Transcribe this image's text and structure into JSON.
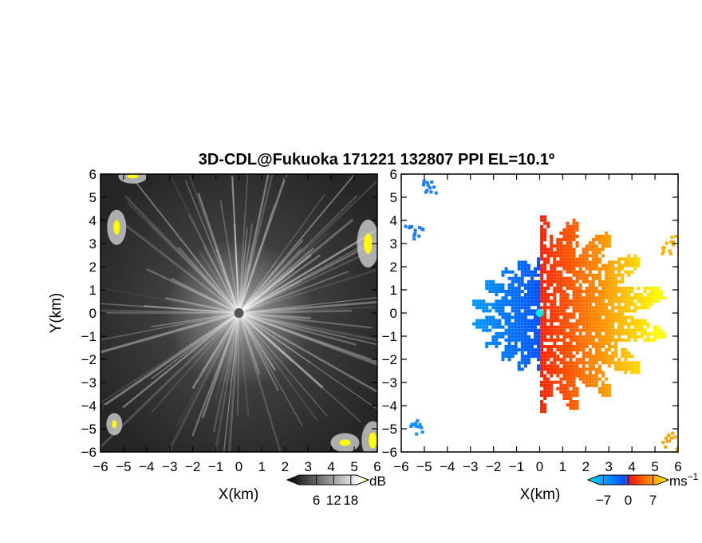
{
  "title": "3D-CDL@Fukuoka 171221 132807 PPI EL=10.1º",
  "chart_data": [
    {
      "type": "heatmap",
      "field": "intensity",
      "xlabel": "X(km)",
      "ylabel": "Y(km)",
      "xlim": [
        -6,
        6
      ],
      "ylim": [
        -6,
        6
      ],
      "ticks": [
        -6,
        -5,
        -4,
        -3,
        -2,
        -1,
        0,
        1,
        2,
        3,
        4,
        5,
        6
      ],
      "colorbar": {
        "unit": "dB",
        "ticks": [
          6,
          12,
          18
        ],
        "colors": [
          "#000000",
          "#ffffff",
          "#ffff00"
        ]
      },
      "highlights": [
        "top-left corner",
        "left edge near y=3.5",
        "right edge near y=3",
        "bottom-left corner",
        "bottom-right corner"
      ],
      "center_marker": {
        "x": 0,
        "y": 0
      }
    },
    {
      "type": "heatmap",
      "field": "radial velocity",
      "xlabel": "X(km)",
      "ylabel": "",
      "xlim": [
        -6,
        6
      ],
      "ylim": [
        -6,
        6
      ],
      "ticks": [
        -6,
        -5,
        -4,
        -3,
        -2,
        -1,
        0,
        1,
        2,
        3,
        4,
        5,
        6
      ],
      "colorbar": {
        "unit": "ms",
        "unit_exponent": "−1",
        "ticks": [
          -7,
          0,
          7
        ],
        "colors": [
          "#00e0ff",
          "#0050ff",
          "#ff2000",
          "#ffff00"
        ]
      },
      "pattern": "negative velocities (blue) west of center, positive velocities (red to yellow) east of center",
      "center_marker": {
        "x": 0,
        "y": 0
      }
    }
  ],
  "tick_labels": [
    "−6",
    "−5",
    "−4",
    "−3",
    "−2",
    "−1",
    "0",
    "1",
    "2",
    "3",
    "4",
    "5",
    "6"
  ],
  "colorbar_labels": {
    "intensity": [
      "6",
      "12",
      "18"
    ],
    "velocity": [
      "−7",
      "0",
      "7"
    ]
  }
}
